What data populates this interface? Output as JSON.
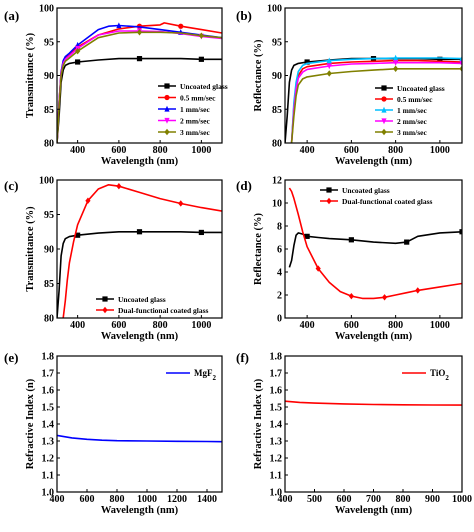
{
  "chart_data": [
    {
      "panel": "(a)",
      "type": "line",
      "xlabel": "Wavelength (nm)",
      "ylabel": "Transmittance (%)",
      "xlim": [
        300,
        1100
      ],
      "ylim": [
        80,
        100
      ],
      "xticks": [
        400,
        600,
        800,
        1000
      ],
      "yticks": [
        80,
        85,
        90,
        95,
        100
      ],
      "legend_position": "bottom-right",
      "series": [
        {
          "name": "Uncoated glass",
          "color": "#000000",
          "marker": "square",
          "x": [
            300,
            310,
            320,
            330,
            340,
            360,
            400,
            500,
            600,
            700,
            800,
            900,
            1000,
            1100
          ],
          "y": [
            80,
            84,
            89,
            90.8,
            91.5,
            91.8,
            92.0,
            92.3,
            92.5,
            92.5,
            92.5,
            92.5,
            92.4,
            92.4
          ]
        },
        {
          "name": "0.5 mm/sec",
          "color": "#ff0000",
          "marker": "circle",
          "x": [
            300,
            310,
            320,
            330,
            340,
            360,
            400,
            500,
            600,
            700,
            800,
            820,
            900,
            1000,
            1100
          ],
          "y": [
            80,
            86,
            90.5,
            92.0,
            92.6,
            93.0,
            94.2,
            96.0,
            96.9,
            97.3,
            97.5,
            97.8,
            97.3,
            96.8,
            96.3
          ]
        },
        {
          "name": "1 mm/sec",
          "color": "#0000ff",
          "marker": "triangle-up",
          "x": [
            300,
            310,
            320,
            330,
            340,
            360,
            400,
            500,
            550,
            600,
            700,
            800,
            900,
            1000,
            1100
          ],
          "y": [
            80,
            86,
            90.5,
            92.2,
            92.8,
            93.3,
            94.5,
            96.8,
            97.3,
            97.4,
            97.2,
            96.8,
            96.4,
            96.0,
            95.6
          ]
        },
        {
          "name": "2 mm/sec",
          "color": "#ff00ff",
          "marker": "triangle-down",
          "x": [
            300,
            310,
            320,
            330,
            340,
            360,
            400,
            500,
            600,
            700,
            800,
            900,
            1000,
            1100
          ],
          "y": [
            80,
            86,
            90.3,
            91.8,
            92.4,
            92.9,
            94.0,
            96.0,
            96.6,
            96.6,
            96.5,
            96.2,
            95.8,
            95.5
          ]
        },
        {
          "name": "3 mm/sec",
          "color": "#808000",
          "marker": "diamond",
          "x": [
            300,
            310,
            320,
            330,
            340,
            360,
            400,
            500,
            600,
            700,
            800,
            900,
            1000,
            1100
          ],
          "y": [
            80,
            85.5,
            90.0,
            91.5,
            92.1,
            92.6,
            93.6,
            95.6,
            96.3,
            96.4,
            96.4,
            96.3,
            95.9,
            95.6
          ]
        }
      ]
    },
    {
      "panel": "(b)",
      "type": "line",
      "xlabel": "Wavelength (nm)",
      "ylabel": "Reflectance (%)",
      "xlim": [
        300,
        1100
      ],
      "ylim": [
        80,
        100
      ],
      "xticks": [
        400,
        600,
        800,
        1000
      ],
      "yticks": [
        80,
        85,
        90,
        95,
        100
      ],
      "legend_position": "bottom-right",
      "series": [
        {
          "name": "Uncoated glass",
          "color": "#000000",
          "marker": "square",
          "x": [
            300,
            310,
            320,
            330,
            340,
            360,
            400,
            500,
            600,
            700,
            800,
            900,
            1000,
            1100
          ],
          "y": [
            80,
            84,
            89,
            90.8,
            91.5,
            91.8,
            92.0,
            92.3,
            92.5,
            92.5,
            92.5,
            92.5,
            92.4,
            92.4
          ]
        },
        {
          "name": "0.5 mm/sec",
          "color": "#ff0000",
          "marker": "circle",
          "x": [
            330,
            340,
            350,
            360,
            380,
            400,
            500,
            600,
            700,
            800,
            900,
            1000,
            1100
          ],
          "y": [
            80,
            85.5,
            88.5,
            90.0,
            91.0,
            91.3,
            91.8,
            92.0,
            92.1,
            92.2,
            92.2,
            92.1,
            92.0
          ]
        },
        {
          "name": "1 mm/sec",
          "color": "#00bfff",
          "marker": "triangle-up",
          "x": [
            330,
            340,
            350,
            360,
            380,
            400,
            500,
            600,
            700,
            800,
            900,
            1000,
            1100
          ],
          "y": [
            80,
            86,
            89,
            90.6,
            91.5,
            91.8,
            92.2,
            92.4,
            92.5,
            92.6,
            92.6,
            92.6,
            92.5
          ]
        },
        {
          "name": "2 mm/sec",
          "color": "#ff00ff",
          "marker": "triangle-down",
          "x": [
            330,
            340,
            350,
            360,
            380,
            400,
            500,
            600,
            700,
            800,
            900,
            1000,
            1100
          ],
          "y": [
            80,
            85,
            88,
            89.6,
            90.5,
            90.9,
            91.4,
            91.7,
            91.8,
            91.9,
            91.9,
            91.9,
            91.8
          ]
        },
        {
          "name": "3 mm/sec",
          "color": "#808000",
          "marker": "diamond",
          "x": [
            330,
            340,
            350,
            360,
            380,
            400,
            500,
            600,
            700,
            800,
            900,
            1000,
            1100
          ],
          "y": [
            80,
            84,
            87,
            88.6,
            89.5,
            89.8,
            90.3,
            90.6,
            90.8,
            91.0,
            91.0,
            91.0,
            91.0
          ]
        }
      ]
    },
    {
      "panel": "(c)",
      "type": "line",
      "xlabel": "Wavelength (nm)",
      "ylabel": "Transmittance (%)",
      "xlim": [
        300,
        1100
      ],
      "ylim": [
        80,
        100
      ],
      "xticks": [
        400,
        600,
        800,
        1000
      ],
      "yticks": [
        80,
        85,
        90,
        95,
        100
      ],
      "legend_position": "bottom-right",
      "series": [
        {
          "name": "Uncoated glass",
          "color": "#000000",
          "marker": "square",
          "x": [
            300,
            310,
            320,
            330,
            340,
            360,
            400,
            500,
            600,
            700,
            800,
            900,
            1000,
            1100
          ],
          "y": [
            80,
            84,
            89,
            90.8,
            91.5,
            91.8,
            92.0,
            92.3,
            92.5,
            92.5,
            92.5,
            92.5,
            92.4,
            92.4
          ]
        },
        {
          "name": "Dual-functional coated glass",
          "color": "#ff0000",
          "marker": "diamond",
          "x": [
            330,
            340,
            350,
            360,
            380,
            400,
            450,
            500,
            550,
            600,
            700,
            800,
            900,
            1000,
            1100
          ],
          "y": [
            80,
            82.5,
            85.5,
            88,
            91,
            93.5,
            97.0,
            98.7,
            99.3,
            99.1,
            98.2,
            97.3,
            96.6,
            96.0,
            95.5
          ]
        }
      ]
    },
    {
      "panel": "(d)",
      "type": "line",
      "xlabel": "Wavelength (nm)",
      "ylabel": "Reflectance (%)",
      "xlim": [
        300,
        1100
      ],
      "ylim": [
        0,
        12
      ],
      "xticks": [
        400,
        600,
        800,
        1000
      ],
      "yticks": [
        0,
        2,
        4,
        6,
        8,
        10,
        12
      ],
      "legend_position": "top-right",
      "series": [
        {
          "name": "Uncoated glass",
          "color": "#000000",
          "marker": "square",
          "x": [
            320,
            330,
            340,
            350,
            360,
            380,
            400,
            450,
            500,
            600,
            700,
            800,
            850,
            900,
            1000,
            1100
          ],
          "y": [
            4.4,
            5.0,
            6.3,
            7.2,
            7.4,
            7.3,
            7.1,
            7.0,
            6.9,
            6.8,
            6.6,
            6.5,
            6.6,
            7.1,
            7.4,
            7.5
          ]
        },
        {
          "name": "Dual-functional coated glass",
          "color": "#ff0000",
          "marker": "diamond",
          "x": [
            320,
            330,
            340,
            360,
            380,
            400,
            450,
            500,
            550,
            600,
            650,
            700,
            750,
            800,
            850,
            900,
            1000,
            1100
          ],
          "y": [
            11.3,
            11.0,
            10.4,
            9.0,
            7.5,
            6.2,
            4.3,
            3.1,
            2.3,
            1.9,
            1.7,
            1.7,
            1.8,
            2.0,
            2.2,
            2.4,
            2.7,
            3.0
          ]
        }
      ]
    },
    {
      "panel": "(e)",
      "type": "line",
      "xlabel": "Wavelength (nm)",
      "ylabel": "Refractive Index (n)",
      "xlim": [
        400,
        1500
      ],
      "ylim": [
        1.0,
        1.8
      ],
      "xticks": [
        400,
        600,
        800,
        1000,
        1200,
        1400
      ],
      "yticks": [
        1.0,
        1.1,
        1.2,
        1.3,
        1.4,
        1.5,
        1.6,
        1.7,
        1.8
      ],
      "legend_position": "top-right",
      "series": [
        {
          "name": "MgF2",
          "color": "#0000ff",
          "x": [
            400,
            500,
            600,
            700,
            800,
            1000,
            1200,
            1400,
            1500
          ],
          "y": [
            1.333,
            1.318,
            1.31,
            1.305,
            1.302,
            1.3,
            1.298,
            1.297,
            1.296
          ]
        }
      ]
    },
    {
      "panel": "(f)",
      "type": "line",
      "xlabel": "Wavelength (nm)",
      "ylabel": "Refractive Index (n)",
      "xlim": [
        400,
        1000
      ],
      "ylim": [
        1.0,
        1.8
      ],
      "xticks": [
        400,
        500,
        600,
        700,
        800,
        900,
        1000
      ],
      "yticks": [
        1.0,
        1.1,
        1.2,
        1.3,
        1.4,
        1.5,
        1.6,
        1.7,
        1.8
      ],
      "legend_position": "top-right",
      "series": [
        {
          "name": "TiO2",
          "color": "#ff0000",
          "x": [
            400,
            450,
            500,
            600,
            700,
            800,
            900,
            1000
          ],
          "y": [
            1.534,
            1.527,
            1.523,
            1.518,
            1.515,
            1.513,
            1.512,
            1.511
          ]
        }
      ]
    }
  ]
}
